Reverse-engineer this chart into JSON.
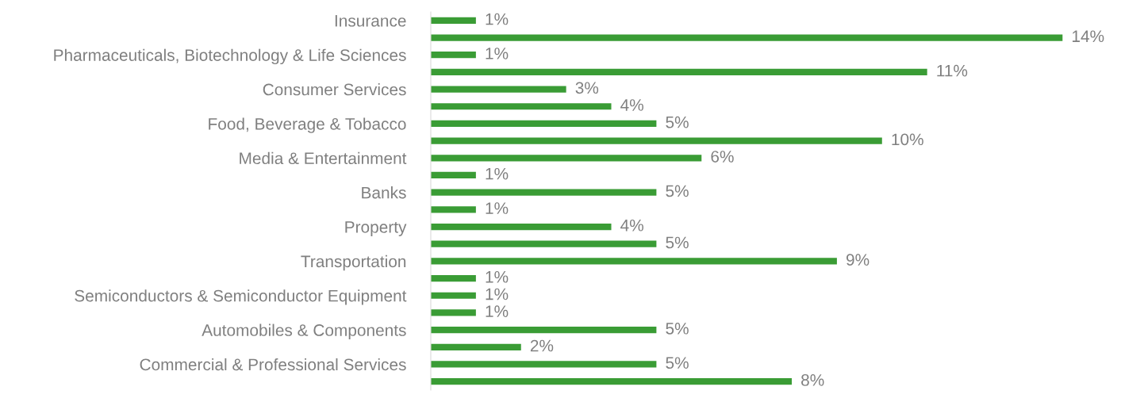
{
  "chart_data": {
    "type": "bar",
    "orientation": "horizontal",
    "categories": [
      "Insurance",
      null,
      "Pharmaceuticals, Biotechnology & Life Sciences",
      null,
      "Consumer Services",
      null,
      "Food, Beverage & Tobacco",
      null,
      "Media & Entertainment",
      null,
      "Banks",
      null,
      "Property",
      null,
      "Transportation",
      null,
      "Semiconductors & Semiconductor Equipment",
      null,
      "Automobiles & Components",
      null,
      "Commercial & Professional Services",
      null
    ],
    "values": [
      1,
      14,
      1,
      11,
      3,
      4,
      5,
      10,
      6,
      1,
      5,
      1,
      4,
      5,
      9,
      1,
      1,
      1,
      5,
      2,
      5,
      8
    ],
    "value_labels": [
      "1%",
      "14%",
      "1%",
      "11%",
      "3%",
      "4%",
      "5%",
      "10%",
      "6%",
      "1%",
      "5%",
      "1%",
      "4%",
      "5%",
      "9%",
      "1%",
      "1%",
      "1%",
      "5%",
      "2%",
      "5%",
      "8%"
    ],
    "color": "#3a9c35",
    "grid": false,
    "legend": false
  }
}
